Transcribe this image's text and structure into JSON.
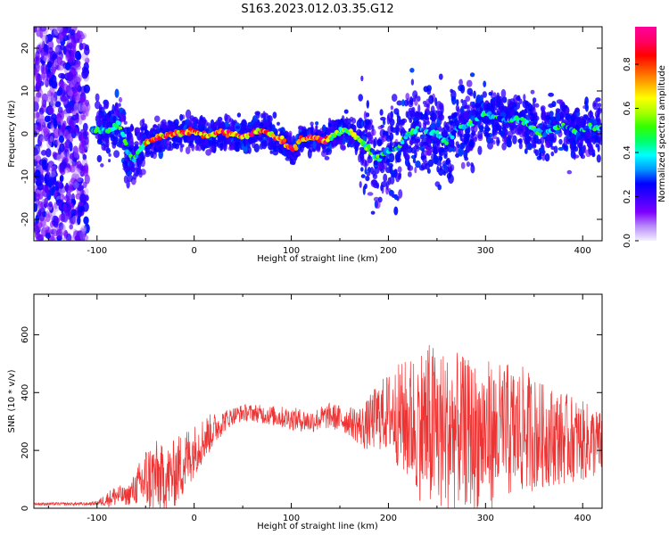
{
  "title": "S163.2023.012.03.35.G12",
  "chart_data": [
    {
      "type": "heatmap",
      "xlabel": "Height of straight line (km)",
      "ylabel": "Frequency (Hz)",
      "xlim": [
        -165,
        420
      ],
      "ylim": [
        -25,
        25
      ],
      "xticks": [
        -100,
        0,
        100,
        200,
        300,
        400
      ],
      "yticks": [
        -20,
        -10,
        0,
        10,
        20
      ],
      "colorbar": {
        "label": "Normalized spectral amplitude",
        "range": [
          0,
          0.97
        ],
        "ticks": [
          0.0,
          0.2,
          0.4,
          0.6,
          0.8
        ],
        "colormap": [
          "#f2f0ff",
          "#b98cf8",
          "#7e00ff",
          "#3d00ff",
          "#0000ff",
          "#0099ff",
          "#00ffff",
          "#00ff66",
          "#33ff00",
          "#aaff00",
          "#ffff00",
          "#ffaa00",
          "#ff5500",
          "#ff0000",
          "#ff0066",
          "#ff0099"
        ]
      },
      "ridge": [
        [
          -110,
          1.0
        ],
        [
          -95,
          0.5
        ],
        [
          -85,
          1.0
        ],
        [
          -78,
          2.5
        ],
        [
          -72,
          -1.0
        ],
        [
          -68,
          -4.5
        ],
        [
          -62,
          -6.0
        ],
        [
          -56,
          -3.5
        ],
        [
          -50,
          -2.0
        ],
        [
          -42,
          -1.5
        ],
        [
          -35,
          -0.5
        ],
        [
          -25,
          0.0
        ],
        [
          -15,
          0.0
        ],
        [
          -5,
          0.5
        ],
        [
          5,
          0.0
        ],
        [
          15,
          -0.5
        ],
        [
          25,
          0.5
        ],
        [
          35,
          0.0
        ],
        [
          45,
          -0.5
        ],
        [
          55,
          -0.5
        ],
        [
          65,
          0.5
        ],
        [
          75,
          0.5
        ],
        [
          82,
          -0.5
        ],
        [
          90,
          -1.5
        ],
        [
          97,
          -3.0
        ],
        [
          102,
          -4.0
        ],
        [
          108,
          -1.5
        ],
        [
          115,
          -1.0
        ],
        [
          125,
          -1.0
        ],
        [
          135,
          -1.5
        ],
        [
          145,
          0.0
        ],
        [
          152,
          0.5
        ],
        [
          160,
          0.5
        ],
        [
          168,
          -1.0
        ],
        [
          175,
          -2.5
        ],
        [
          182,
          -4.0
        ],
        [
          190,
          -6.0
        ],
        [
          200,
          -4.0
        ],
        [
          210,
          -3.0
        ],
        [
          220,
          0.0
        ],
        [
          230,
          1.0
        ],
        [
          240,
          0.5
        ],
        [
          250,
          0.0
        ],
        [
          260,
          -2.0
        ],
        [
          270,
          1.0
        ],
        [
          280,
          2.0
        ],
        [
          290,
          3.0
        ],
        [
          300,
          5.0
        ],
        [
          310,
          4.0
        ],
        [
          320,
          3.0
        ],
        [
          330,
          3.5
        ],
        [
          340,
          3.0
        ],
        [
          350,
          1.0
        ],
        [
          360,
          0.0
        ],
        [
          370,
          1.0
        ],
        [
          380,
          2.0
        ],
        [
          390,
          0.5
        ],
        [
          400,
          1.0
        ],
        [
          410,
          1.5
        ],
        [
          420,
          1.5
        ]
      ]
    },
    {
      "type": "line",
      "xlabel": "Height of straight line (km)",
      "ylabel": "SNR (10 * v/v)",
      "xlim": [
        -165,
        420
      ],
      "ylim": [
        0,
        740
      ],
      "xticks": [
        -100,
        0,
        100,
        200,
        300,
        400
      ],
      "yticks": [
        0,
        200,
        400,
        600
      ],
      "color": "#ee3333",
      "series": [
        {
          "x": [
            -165,
            -110,
            -100,
            -90,
            -80,
            -70,
            -60,
            -50,
            -40,
            -30,
            -20,
            -10,
            0,
            10,
            20,
            30,
            40,
            50,
            60,
            80,
            100,
            120,
            140,
            160,
            175,
            190,
            200,
            210,
            220,
            230,
            240,
            250,
            260,
            270,
            280,
            290,
            300,
            310,
            320,
            330,
            340,
            350,
            360,
            370,
            380,
            390,
            400,
            410,
            420
          ],
          "mean": [
            15,
            15,
            18,
            30,
            45,
            40,
            70,
            100,
            110,
            100,
            120,
            160,
            200,
            240,
            270,
            300,
            320,
            330,
            330,
            320,
            310,
            300,
            320,
            300,
            280,
            320,
            330,
            320,
            300,
            300,
            280,
            270,
            260,
            270,
            260,
            250,
            260,
            250,
            270,
            260,
            270,
            260,
            250,
            250,
            240,
            240,
            230,
            230,
            220
          ],
          "amp": [
            5,
            5,
            8,
            25,
            40,
            30,
            60,
            120,
            130,
            110,
            120,
            120,
            90,
            80,
            60,
            40,
            30,
            30,
            30,
            35,
            40,
            40,
            45,
            50,
            80,
            120,
            140,
            180,
            220,
            260,
            300,
            300,
            280,
            270,
            260,
            260,
            260,
            250,
            240,
            230,
            220,
            200,
            180,
            170,
            160,
            150,
            140,
            130,
            110
          ]
        }
      ]
    }
  ]
}
